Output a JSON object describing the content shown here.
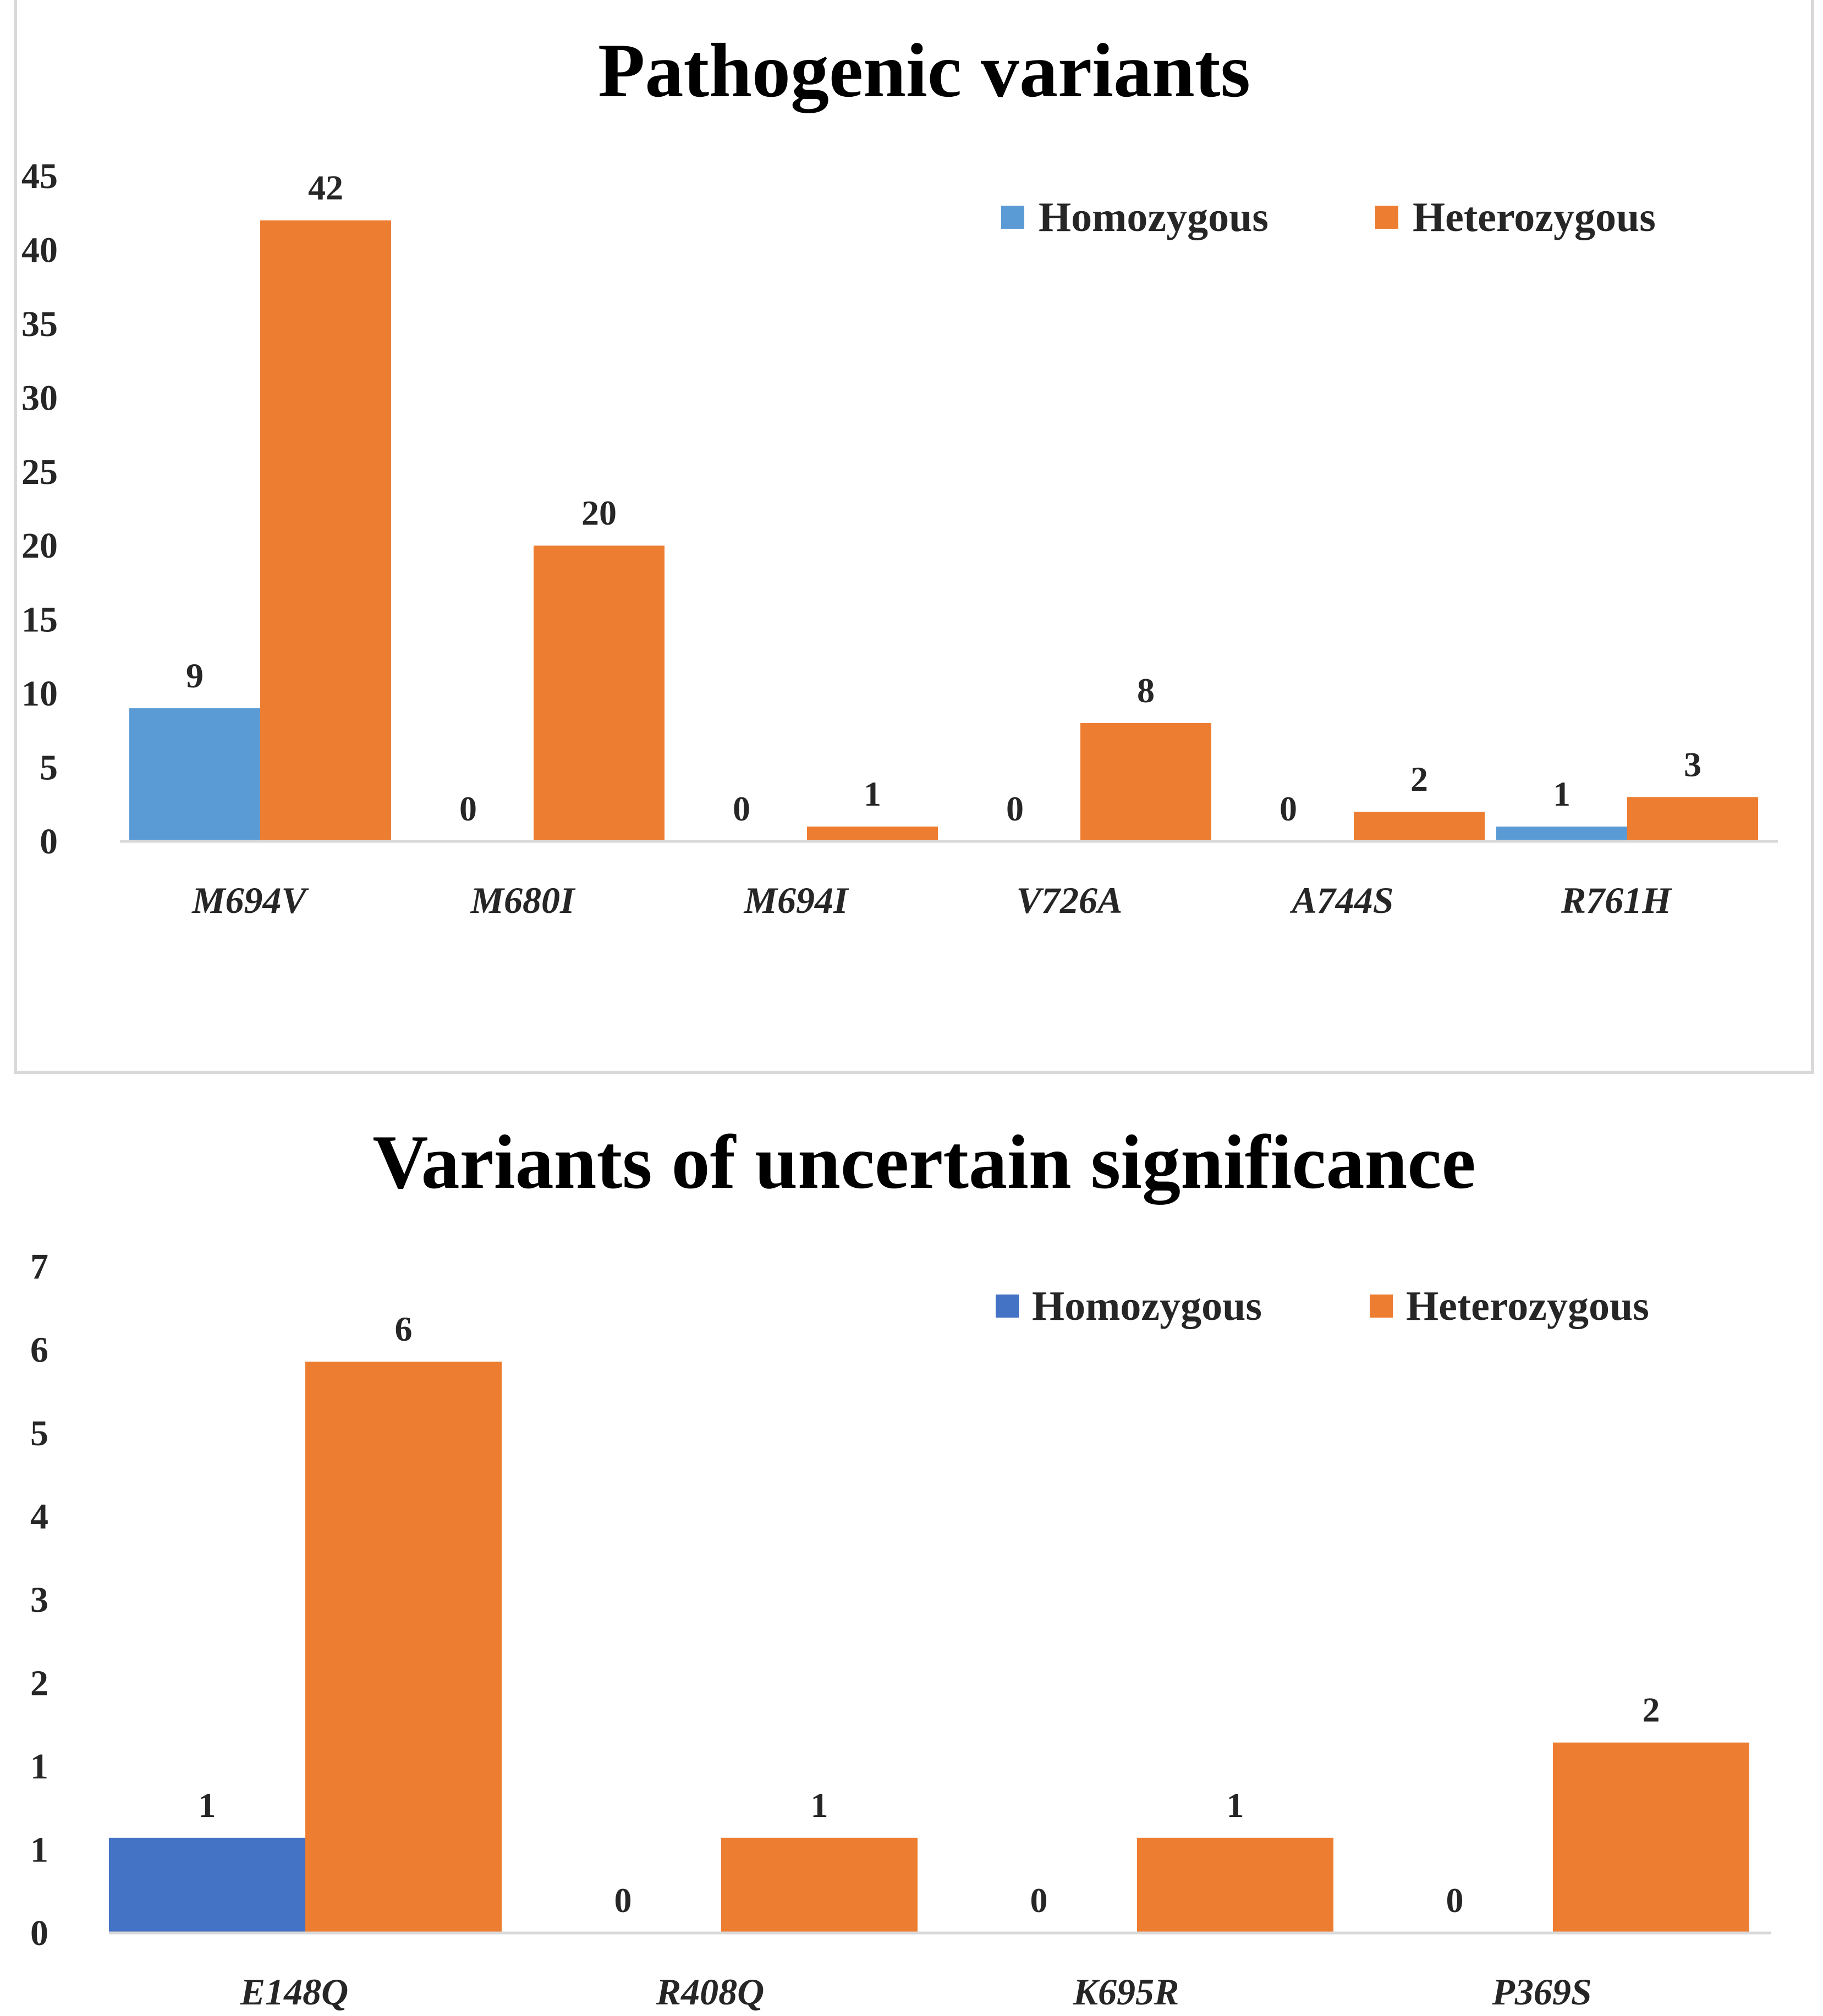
{
  "chart_data": [
    {
      "type": "bar",
      "title": "Pathogenic variants",
      "categories": [
        "M694V",
        "M680I",
        "M694I",
        "V726A",
        "A744S",
        "R761H"
      ],
      "series": [
        {
          "name": "Homozygous",
          "color": "#5B9BD5",
          "values": [
            9,
            0,
            0,
            0,
            0,
            1
          ]
        },
        {
          "name": "Heterozygous",
          "color": "#ED7D31",
          "values": [
            42,
            20,
            1,
            8,
            2,
            3
          ]
        }
      ],
      "yticks": [
        0,
        5,
        10,
        15,
        20,
        25,
        30,
        35,
        40,
        45
      ],
      "ylim": [
        0,
        45
      ],
      "xlabel": "",
      "ylabel": "",
      "legend": "top-right",
      "grid": false
    },
    {
      "type": "bar",
      "title": "Variants of uncertain significance",
      "categories": [
        "E148Q",
        "R408Q",
        "K695R",
        "P369S"
      ],
      "series": [
        {
          "name": "Homozygous",
          "color": "#4472C4",
          "values": [
            1,
            0,
            0,
            0
          ]
        },
        {
          "name": "Heterozygous",
          "color": "#ED7D31",
          "values": [
            6,
            1,
            1,
            2
          ]
        }
      ],
      "yticks": [
        "0",
        "1",
        "1",
        "2",
        "3",
        "4",
        "5",
        "6",
        "7"
      ],
      "ylim": [
        0,
        7
      ],
      "xlabel": "",
      "ylabel": "",
      "legend": "top-right",
      "grid": false
    }
  ]
}
